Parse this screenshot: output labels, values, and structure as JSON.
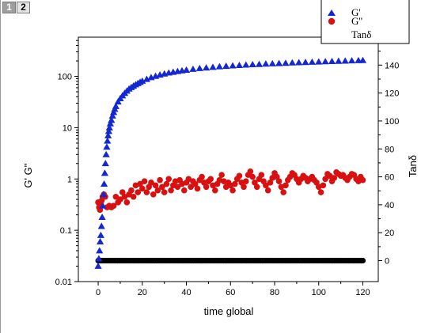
{
  "tabs": [
    {
      "label": "1",
      "active": true
    },
    {
      "label": "2",
      "active": false
    }
  ],
  "chart_data": {
    "type": "scatter",
    "title": "",
    "xlabel": "time global",
    "ylabel_left": "G' G''",
    "ylabel_right": "Tanδ",
    "xlim": [
      -9,
      127
    ],
    "xticks": [
      0,
      20,
      40,
      60,
      80,
      100,
      120
    ],
    "ylim_left": [
      0.01,
      580
    ],
    "yscale_left": "log",
    "yticks_left": [
      0.01,
      0.1,
      1,
      10,
      100
    ],
    "ytick_labels_left": [
      "0.01",
      "0.1",
      "1",
      "10",
      "100"
    ],
    "ylim_right": [
      -15,
      160
    ],
    "yticks_right": [
      0,
      20,
      40,
      60,
      80,
      100,
      120,
      140,
      160
    ],
    "legend": {
      "position": "top-right",
      "entries": [
        "G'",
        "G''",
        "Tanδ"
      ]
    },
    "series": [
      {
        "name": "G'",
        "marker": "triangle",
        "color": "#1428d2",
        "axis": "left",
        "x": [
          0,
          0.3,
          0.6,
          0.9,
          1.2,
          1.5,
          1.8,
          2.1,
          2.4,
          2.7,
          3,
          3.3,
          3.6,
          3.9,
          4.2,
          4.5,
          4.8,
          5.1,
          5.5,
          6,
          6.5,
          7,
          7.5,
          8,
          9,
          10,
          11,
          12,
          13,
          14,
          15,
          16,
          17,
          18,
          19,
          20,
          22,
          24,
          26,
          28,
          30,
          32,
          34,
          36,
          38,
          40,
          43,
          46,
          49,
          52,
          55,
          58,
          61,
          64,
          67,
          70,
          73,
          76,
          79,
          82,
          85,
          88,
          91,
          94,
          97,
          100,
          103,
          106,
          109,
          112,
          115,
          118,
          120
        ],
        "y": [
          0.02,
          0.028,
          0.04,
          0.06,
          0.08,
          0.12,
          0.18,
          0.3,
          0.5,
          0.8,
          1.3,
          2,
          3,
          4.2,
          5.5,
          7,
          8.5,
          10,
          12,
          14,
          17,
          20,
          23,
          26,
          32,
          37,
          42,
          47,
          52,
          57,
          61,
          65,
          69,
          73,
          77,
          81,
          88,
          95,
          101,
          107,
          112,
          117,
          121,
          125,
          129,
          133,
          138,
          143,
          147,
          151,
          155,
          158,
          161,
          164,
          167,
          170,
          172,
          175,
          177,
          179,
          181,
          184,
          186,
          188,
          190,
          192,
          194,
          196,
          198,
          200,
          202,
          204,
          205
        ]
      },
      {
        "name": "G''",
        "marker": "circle",
        "color": "#d81010",
        "axis": "left",
        "x": [
          0,
          0.4,
          0.8,
          1.2,
          1.6,
          2,
          2.6,
          3.2,
          4,
          5,
          6,
          7,
          8,
          9,
          10,
          11,
          12,
          13,
          14,
          15,
          16,
          17,
          18,
          19,
          20,
          21,
          22,
          23,
          24,
          25,
          26,
          27,
          28,
          29,
          30,
          31,
          32,
          33,
          34,
          35,
          36,
          37,
          38,
          39,
          40,
          41,
          42,
          43,
          44,
          45,
          46,
          47,
          48,
          49,
          50,
          51,
          52,
          53,
          54,
          55,
          56,
          57,
          58,
          59,
          60,
          61,
          62,
          63,
          64,
          65,
          66,
          67,
          68,
          69,
          70,
          71,
          72,
          73,
          74,
          75,
          76,
          77,
          78,
          79,
          80,
          81,
          82,
          83,
          84,
          85,
          86,
          87,
          88,
          89,
          90,
          91,
          92,
          93,
          94,
          95,
          96,
          97,
          98,
          99,
          100,
          101,
          102,
          103,
          104,
          105,
          106,
          107,
          108,
          109,
          110,
          111,
          112,
          113,
          114,
          115,
          116,
          117,
          118,
          119,
          120
        ],
        "y": [
          0.35,
          0.28,
          0.25,
          0.3,
          0.38,
          0.45,
          0.5,
          0.45,
          0.28,
          0.3,
          0.28,
          0.3,
          0.45,
          0.35,
          0.4,
          0.55,
          0.45,
          0.35,
          0.5,
          0.6,
          0.45,
          0.75,
          0.55,
          0.8,
          0.65,
          0.9,
          0.55,
          0.7,
          0.85,
          0.5,
          0.75,
          0.6,
          0.95,
          0.7,
          0.55,
          0.8,
          1.0,
          0.6,
          0.75,
          0.9,
          0.7,
          0.95,
          0.8,
          0.6,
          0.85,
          1.0,
          0.7,
          0.9,
          0.8,
          0.65,
          0.95,
          1.1,
          0.85,
          0.7,
          0.9,
          1.0,
          0.75,
          0.6,
          0.8,
          0.95,
          1.2,
          0.9,
          0.7,
          0.85,
          0.75,
          0.6,
          0.8,
          1.0,
          1.15,
          0.85,
          0.7,
          0.9,
          1.2,
          1.4,
          1.1,
          0.85,
          0.7,
          1.0,
          1.2,
          0.9,
          0.75,
          0.6,
          0.85,
          1.05,
          1.3,
          1.1,
          0.9,
          0.7,
          0.55,
          0.75,
          0.95,
          1.1,
          1.3,
          1.2,
          1.0,
          0.85,
          1.0,
          1.15,
          1.05,
          0.9,
          1.0,
          1.1,
          0.95,
          0.85,
          0.7,
          0.55,
          0.75,
          1.0,
          1.25,
          1.15,
          0.9,
          1.05,
          1.35,
          1.25,
          1.15,
          1.2,
          1.05,
          0.95,
          1.1,
          1.25,
          1.2,
          1.0,
          0.9,
          1.1,
          0.95
        ]
      },
      {
        "name": "Tanδ",
        "marker": "circle",
        "color": "#000000",
        "axis": "right",
        "x_start": 0,
        "x_end": 120,
        "x_step": 0.8,
        "y_constant": 0
      }
    ]
  }
}
